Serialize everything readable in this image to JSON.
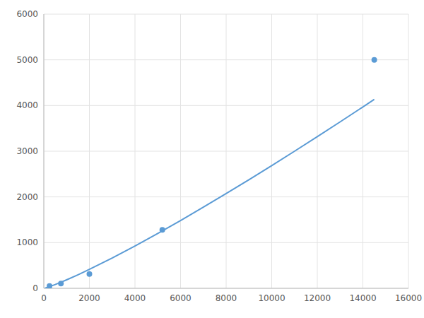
{
  "chart_data": {
    "type": "scatter",
    "series": [
      {
        "type": "scatter",
        "color": "#5b9bd5",
        "marker": "circle",
        "x": [
          250,
          750,
          2000,
          5200,
          14500
        ],
        "values": [
          50,
          105,
          315,
          1280,
          5000
        ]
      },
      {
        "type": "line",
        "color": "#5b9bd5",
        "line_style": "solid",
        "x": [
          50,
          100,
          250,
          500,
          750,
          1000,
          1500,
          2000,
          3000,
          4000,
          5000,
          6000,
          7000,
          8000,
          9000,
          10000,
          11000,
          12000,
          13000,
          14000,
          14500
        ],
        "values": [
          5.7,
          12.8,
          37.0,
          82.9,
          132.7,
          185.3,
          296.7,
          414.4,
          663.6,
          926.8,
          1200.9,
          1484.0,
          1774.9,
          2072.6,
          2376.4,
          2685.6,
          2999.9,
          3318.9,
          3642.1,
          3969.4,
          4134.5
        ]
      }
    ],
    "xlim": [
      0,
      16000
    ],
    "ylim": [
      0,
      6000
    ],
    "xticks": [
      0,
      2000,
      4000,
      6000,
      8000,
      10000,
      12000,
      14000,
      16000
    ],
    "yticks": [
      0,
      1000,
      2000,
      3000,
      4000,
      5000,
      6000
    ],
    "grid": true
  }
}
